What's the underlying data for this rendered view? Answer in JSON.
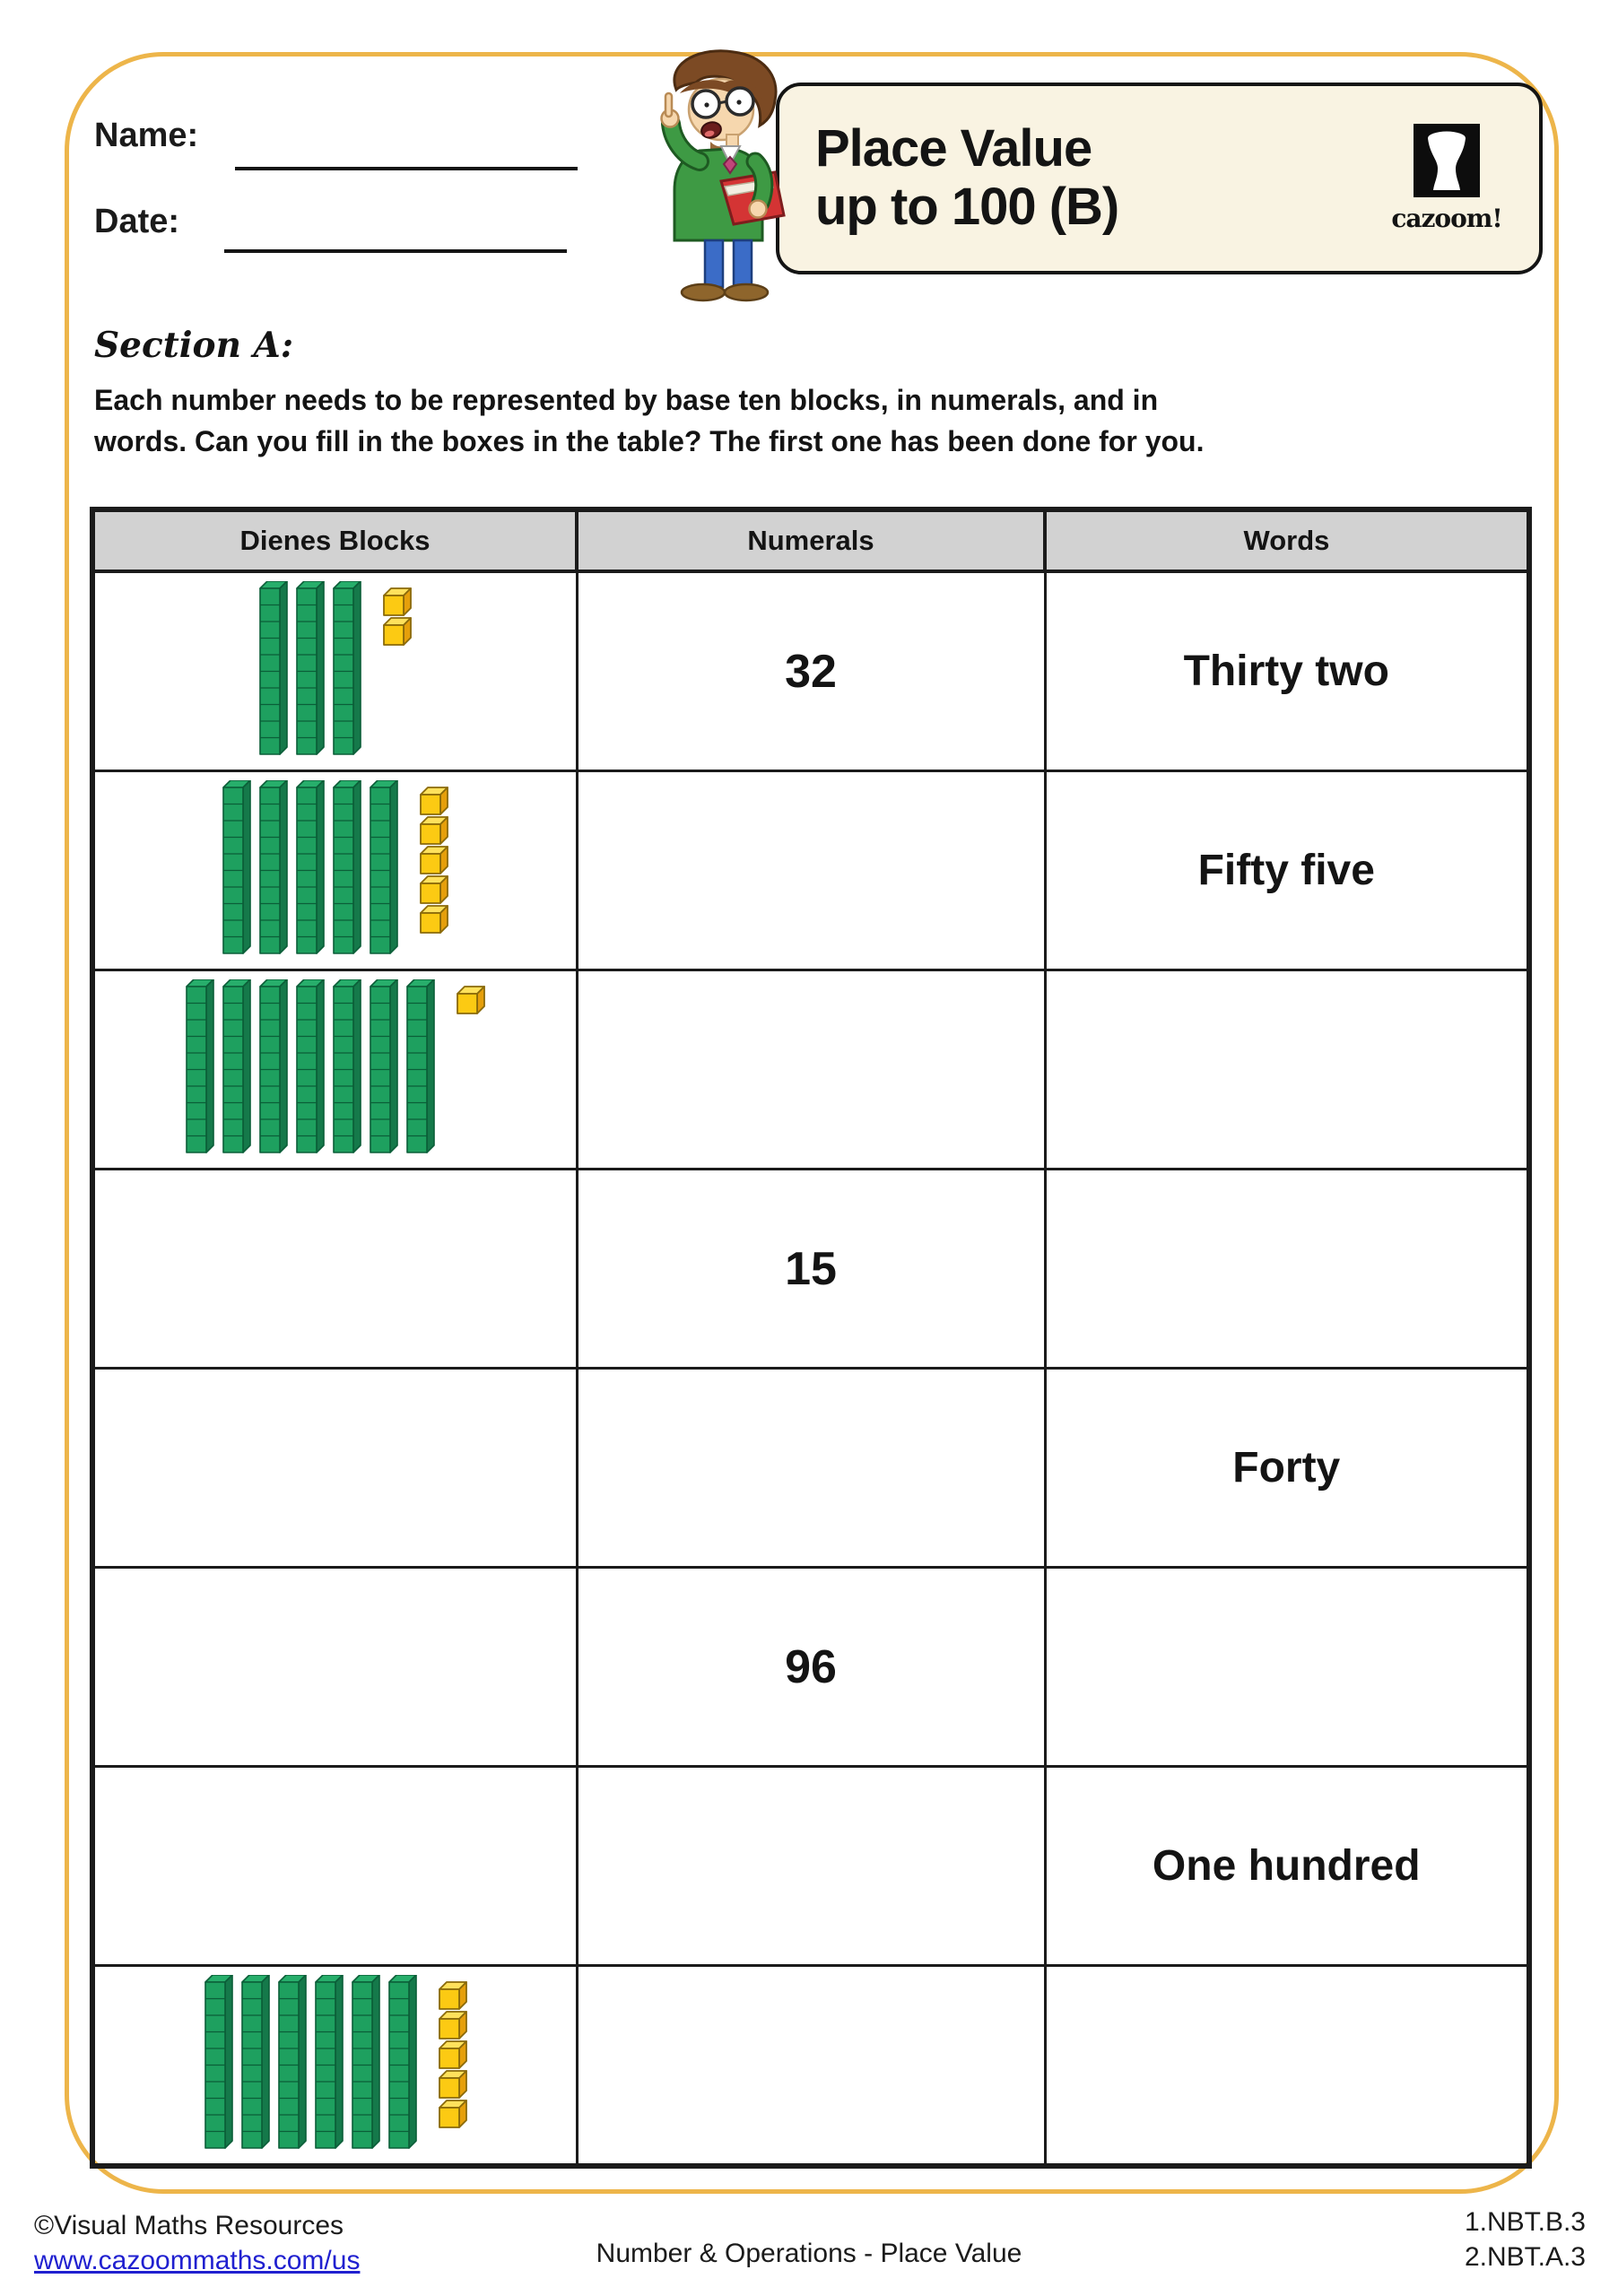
{
  "page": {
    "header": {
      "name_label": "Name:",
      "date_label": "Date:"
    },
    "title": {
      "line1": "Place Value",
      "line2": "up to 100 (B)",
      "logo_text": "cazoom!"
    },
    "section": {
      "heading": "Section A:",
      "instructions_lines": [
        "Each number needs to be represented by base ten blocks, in numerals, and in",
        "words. Can you fill in the boxes in the table? The first one has been done for you."
      ]
    },
    "table": {
      "headers": [
        "Dienes Blocks",
        "Numerals",
        "Words"
      ],
      "rows": [
        {
          "dienes": {
            "tens": 3,
            "ones": 2
          },
          "numerals": "32",
          "words": "Thirty two"
        },
        {
          "dienes": {
            "tens": 5,
            "ones": 5
          },
          "numerals": "",
          "words": "Fifty five"
        },
        {
          "dienes": {
            "tens": 7,
            "ones": 1
          },
          "numerals": "",
          "words": ""
        },
        {
          "dienes": {
            "tens": 0,
            "ones": 0
          },
          "numerals": "15",
          "words": ""
        },
        {
          "dienes": {
            "tens": 0,
            "ones": 0
          },
          "numerals": "",
          "words": "Forty"
        },
        {
          "dienes": {
            "tens": 0,
            "ones": 0
          },
          "numerals": "96",
          "words": ""
        },
        {
          "dienes": {
            "tens": 0,
            "ones": 0
          },
          "numerals": "",
          "words": "One hundred"
        },
        {
          "dienes": {
            "tens": 6,
            "ones": 5
          },
          "numerals": "",
          "words": ""
        }
      ]
    },
    "footer": {
      "copyright": "©Visual Maths Resources",
      "link": "www.cazoommaths.com/us",
      "center": "Number & Operations - Place Value",
      "codes": [
        "1.NBT.B.3",
        "2.NBT.A.3"
      ]
    },
    "colors": {
      "frame_border": "#edb54a",
      "title_bg": "#f9f3e2",
      "table_header_bg": "#d2d2d2",
      "rod_front": "#1ea05f",
      "rod_side": "#15794a",
      "rod_top": "#27ae6b",
      "rod_outline": "#0b5e38",
      "cube_front": "#fcca13",
      "cube_top": "#ffe15c",
      "cube_side": "#e59f0b",
      "cube_outline": "#8a6a0a",
      "link_color": "#2020d0"
    }
  }
}
